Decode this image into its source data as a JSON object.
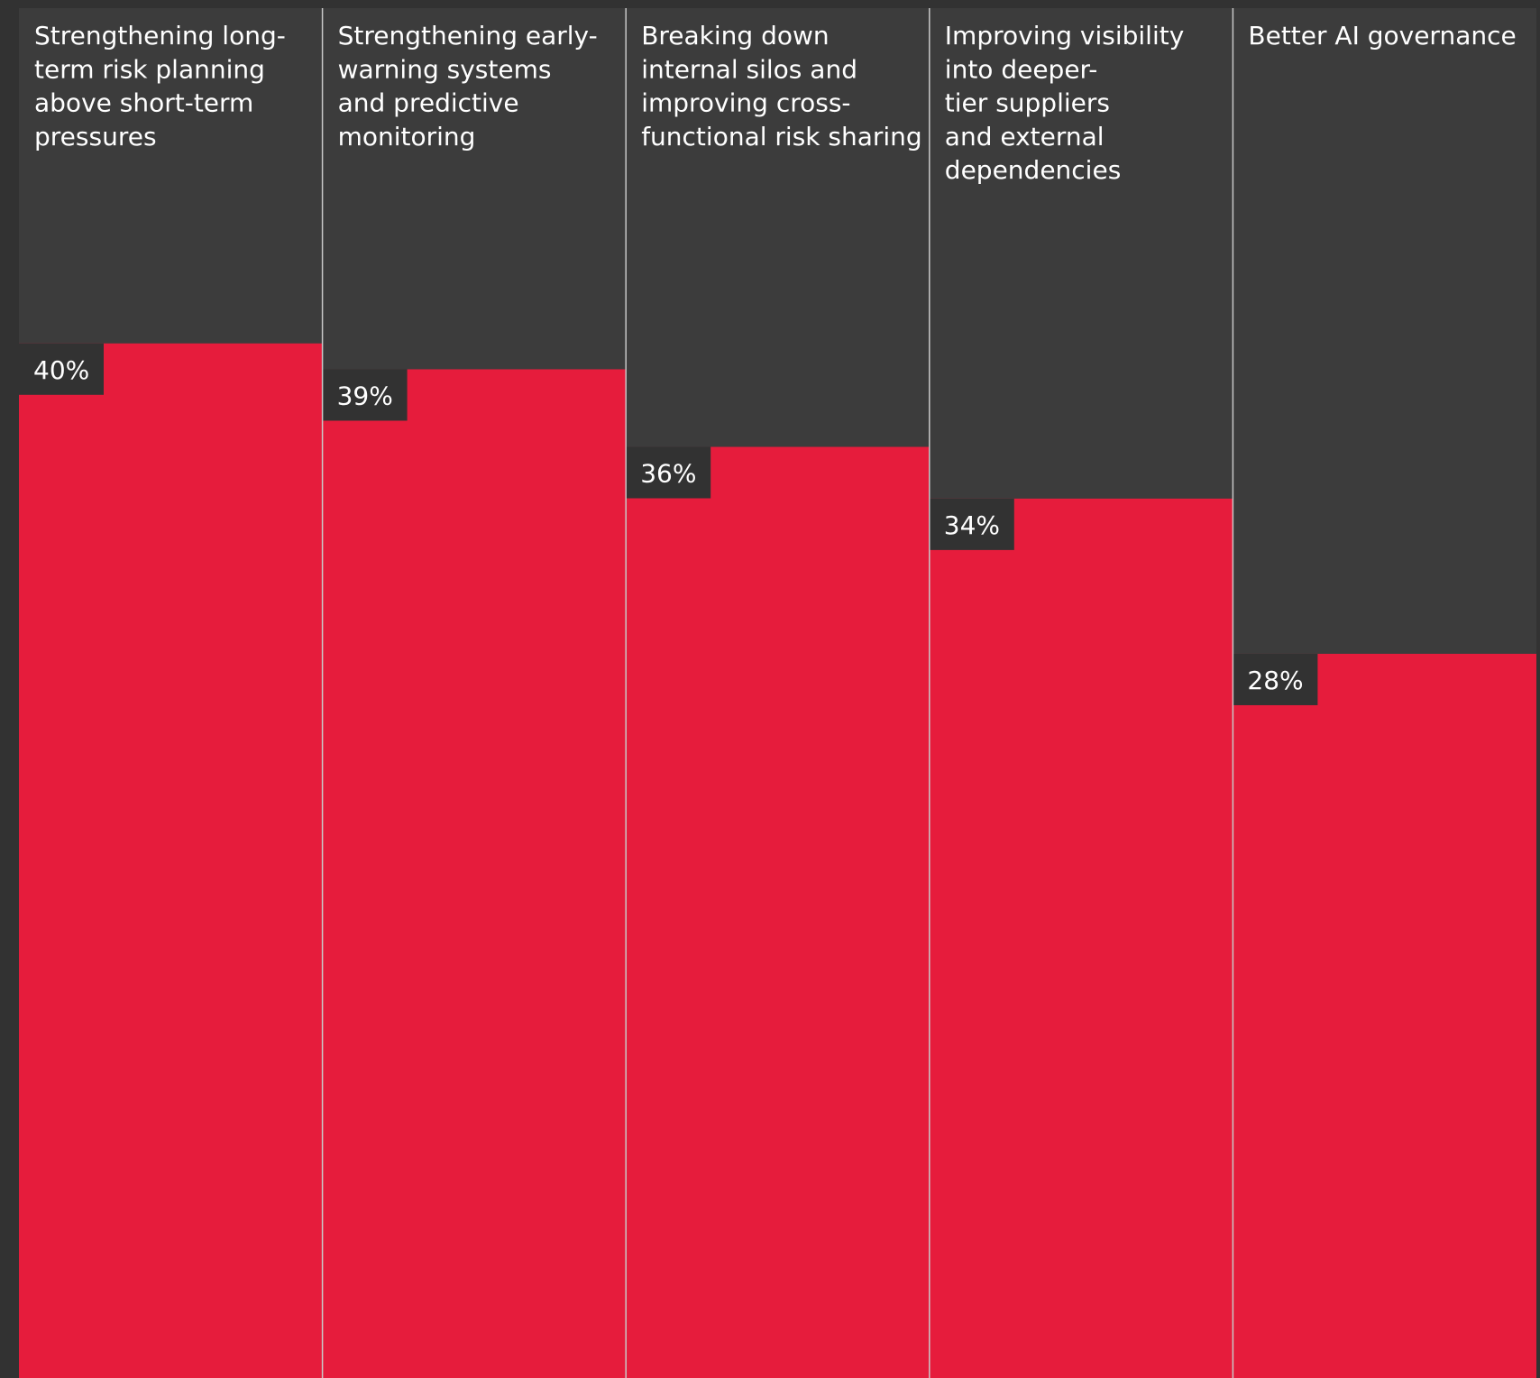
{
  "colors": {
    "page_background": "#323232",
    "panel_background": "#3c3c3c",
    "bar": "#e61c3c",
    "divider": "#c8c8c8",
    "label_box": "#323232",
    "text": "#ffffff"
  },
  "chart_data": {
    "type": "bar",
    "title": "",
    "xlabel": "",
    "ylabel": "",
    "ylim": [
      0,
      100
    ],
    "grid": false,
    "categories": [
      "Strengthening long-term risk planning above short-term pressures",
      "Strengthening early-warning systems and predictive monitoring",
      "Breaking down internal silos and improving cross-functional risk sharing",
      "Improving visibility into deeper-tier suppliers and external dependencies",
      "Better AI governance"
    ],
    "category_lines": [
      [
        "Strengthening long-",
        "term risk planning",
        "above short-term",
        "pressures"
      ],
      [
        "Strengthening early-",
        "warning systems",
        "and predictive",
        "monitoring"
      ],
      [
        "Breaking down",
        "internal silos and",
        "improving cross-",
        "functional risk sharing"
      ],
      [
        "Improving visibility",
        "into deeper-",
        "tier suppliers",
        "and external",
        "dependencies"
      ],
      [
        "Better AI governance"
      ]
    ],
    "values": [
      40,
      39,
      36,
      34,
      28
    ],
    "value_labels": [
      "40%",
      "39%",
      "36%",
      "34%",
      "28%"
    ]
  }
}
